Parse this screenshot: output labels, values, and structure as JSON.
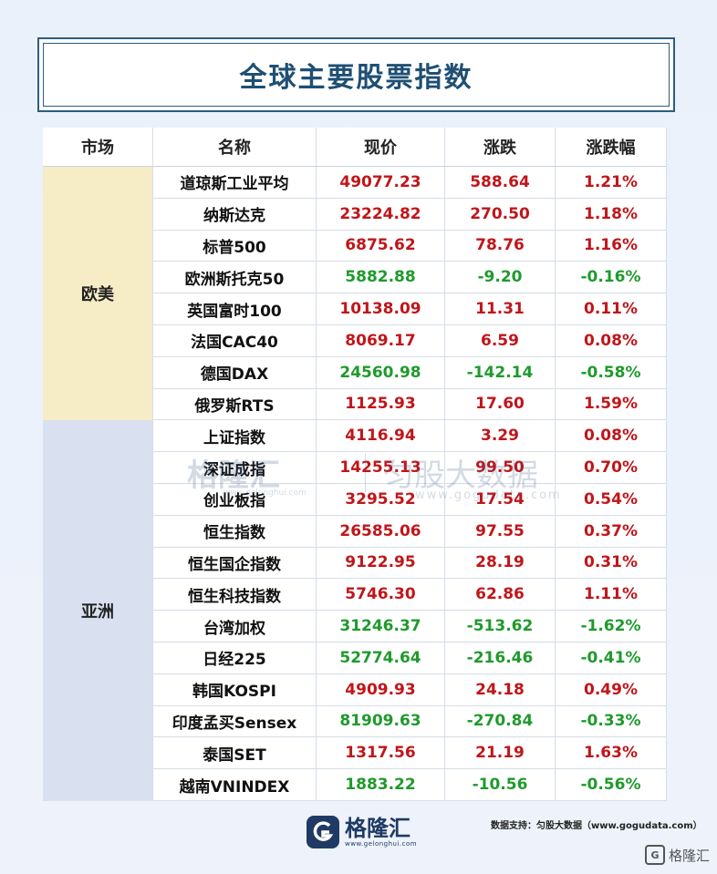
{
  "title": "全球主要股票指数",
  "headers": {
    "market": "市场",
    "name": "名称",
    "price": "现价",
    "change": "涨跌",
    "pct": "涨跌幅"
  },
  "groups": [
    {
      "region": "欧美",
      "rows": [
        {
          "name": "道琼斯工业平均",
          "price": "49077.23",
          "change": "588.64",
          "pct": "1.21%",
          "dir": "up"
        },
        {
          "name": "纳斯达克",
          "price": "23224.82",
          "change": "270.50",
          "pct": "1.18%",
          "dir": "up"
        },
        {
          "name": "标普500",
          "price": "6875.62",
          "change": "78.76",
          "pct": "1.16%",
          "dir": "up"
        },
        {
          "name": "欧洲斯托克50",
          "price": "5882.88",
          "change": "-9.20",
          "pct": "-0.16%",
          "dir": "down"
        },
        {
          "name": "英国富时100",
          "price": "10138.09",
          "change": "11.31",
          "pct": "0.11%",
          "dir": "up"
        },
        {
          "name": "法国CAC40",
          "price": "8069.17",
          "change": "6.59",
          "pct": "0.08%",
          "dir": "up"
        },
        {
          "name": "德国DAX",
          "price": "24560.98",
          "change": "-142.14",
          "pct": "-0.58%",
          "dir": "down"
        },
        {
          "name": "俄罗斯RTS",
          "price": "1125.93",
          "change": "17.60",
          "pct": "1.59%",
          "dir": "up"
        }
      ]
    },
    {
      "region": "亚洲",
      "rows": [
        {
          "name": "上证指数",
          "price": "4116.94",
          "change": "3.29",
          "pct": "0.08%",
          "dir": "up"
        },
        {
          "name": "深证成指",
          "price": "14255.13",
          "change": "99.50",
          "pct": "0.70%",
          "dir": "up"
        },
        {
          "name": "创业板指",
          "price": "3295.52",
          "change": "17.54",
          "pct": "0.54%",
          "dir": "up"
        },
        {
          "name": "恒生指数",
          "price": "26585.06",
          "change": "97.55",
          "pct": "0.37%",
          "dir": "up"
        },
        {
          "name": "恒生国企指数",
          "price": "9122.95",
          "change": "28.19",
          "pct": "0.31%",
          "dir": "up"
        },
        {
          "name": "恒生科技指数",
          "price": "5746.30",
          "change": "62.86",
          "pct": "1.11%",
          "dir": "up"
        },
        {
          "name": "台湾加权",
          "price": "31246.37",
          "change": "-513.62",
          "pct": "-1.62%",
          "dir": "down"
        },
        {
          "name": "日经225",
          "price": "52774.64",
          "change": "-216.46",
          "pct": "-0.41%",
          "dir": "down"
        },
        {
          "name": "韩国KOSPI",
          "price": "4909.93",
          "change": "24.18",
          "pct": "0.49%",
          "dir": "up"
        },
        {
          "name": "印度孟买Sensex",
          "price": "81909.63",
          "change": "-270.84",
          "pct": "-0.33%",
          "dir": "down"
        },
        {
          "name": "泰国SET",
          "price": "1317.56",
          "change": "21.19",
          "pct": "1.63%",
          "dir": "up"
        },
        {
          "name": "越南VNINDEX",
          "price": "1883.22",
          "change": "-10.56",
          "pct": "-0.56%",
          "dir": "down"
        }
      ]
    }
  ],
  "watermark": {
    "logo": "格隆汇",
    "logo_url": "www.gelonghui.com",
    "brand": "匀股大数据",
    "brand_url": "www.gogudata.com"
  },
  "footer": {
    "logo_text": "格隆汇",
    "logo_url": "www.gelonghui.com",
    "source": "数据支持：匀股大数据（www.gogudata.com）",
    "corner": "格隆汇"
  },
  "colors": {
    "up": "#c0161a",
    "down": "#1f9a2c",
    "europe_bg": "#f6ecc6",
    "asia_bg": "#d9e1f1",
    "title": "#1f4f73"
  }
}
